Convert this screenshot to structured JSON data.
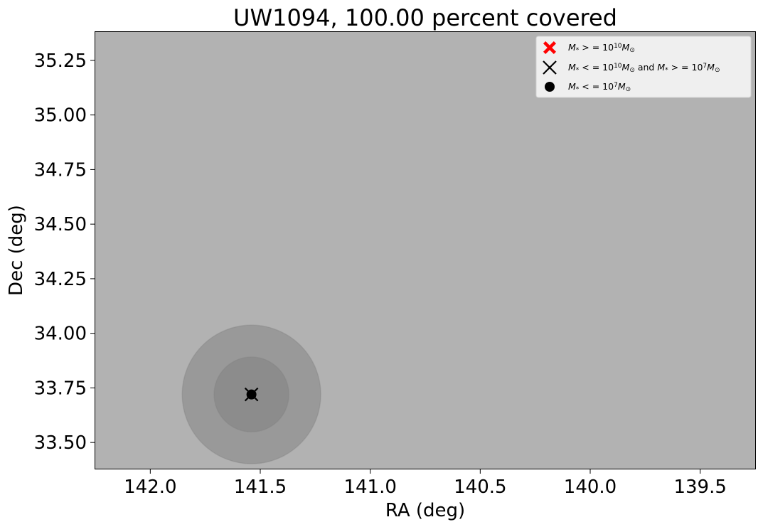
{
  "chart_data": {
    "type": "scatter",
    "title": "UW1094, 100.00 percent covered",
    "xlabel": "RA (deg)",
    "ylabel": "Dec (deg)",
    "xlim": [
      142.25,
      139.25
    ],
    "ylim": [
      33.38,
      35.38
    ],
    "x_inverted": true,
    "xticks": [
      142.0,
      141.5,
      141.0,
      140.5,
      140.0,
      139.5
    ],
    "xtick_labels": [
      "142.0",
      "141.5",
      "141.0",
      "140.5",
      "140.0",
      "139.5"
    ],
    "yticks": [
      33.5,
      33.75,
      34.0,
      34.25,
      34.5,
      34.75,
      35.0,
      35.25
    ],
    "ytick_labels": [
      "33.50",
      "33.75",
      "34.00",
      "34.25",
      "34.50",
      "34.75",
      "35.00",
      "35.25"
    ],
    "grid": false,
    "background_color": "#b2b2b2",
    "coverage_circles": [
      {
        "ra": 141.54,
        "dec": 33.72,
        "radius_deg": 0.315,
        "color": "#808080",
        "opacity": 0.5
      },
      {
        "ra": 141.54,
        "dec": 33.72,
        "radius_deg": 0.17,
        "color": "#808080",
        "opacity": 0.5
      }
    ],
    "series": [
      {
        "name": "$M_* >= 10^{10} M_\\odot$",
        "marker": "X-filled",
        "color": "#ff0000",
        "points": []
      },
      {
        "name": "$M_* <= 10^{10} M_\\odot$ and $M_* >= 10^7 M_\\odot$",
        "marker": "x",
        "color": "#000000",
        "points": [
          {
            "x": 141.54,
            "y": 33.72
          }
        ]
      },
      {
        "name": "$M_* <= 10^7 M_\\odot$",
        "marker": "circle",
        "color": "#000000",
        "points": [
          {
            "x": 141.54,
            "y": 33.72
          }
        ]
      }
    ],
    "legend": {
      "position": "top-right",
      "entries": [
        {
          "parts": [
            [
              "i",
              "M"
            ],
            [
              "sub",
              "*"
            ],
            [
              "n",
              " > = 10"
            ],
            [
              "sup",
              "10"
            ],
            [
              "i",
              "M"
            ],
            [
              "sub",
              "⊙"
            ]
          ]
        },
        {
          "parts": [
            [
              "i",
              "M"
            ],
            [
              "sub",
              "*"
            ],
            [
              "n",
              " < = 10"
            ],
            [
              "sup",
              "10"
            ],
            [
              "i",
              "M"
            ],
            [
              "sub",
              "⊙"
            ],
            [
              "n",
              "  and  "
            ],
            [
              "i",
              "M"
            ],
            [
              "sub",
              "*"
            ],
            [
              "n",
              " > = 10"
            ],
            [
              "sup",
              "7"
            ],
            [
              "i",
              "M"
            ],
            [
              "sub",
              "⊙"
            ]
          ]
        },
        {
          "parts": [
            [
              "i",
              "M"
            ],
            [
              "sub",
              "*"
            ],
            [
              "n",
              " < = 10"
            ],
            [
              "sup",
              "7"
            ],
            [
              "i",
              "M"
            ],
            [
              "sub",
              "⊙"
            ]
          ]
        }
      ]
    }
  }
}
